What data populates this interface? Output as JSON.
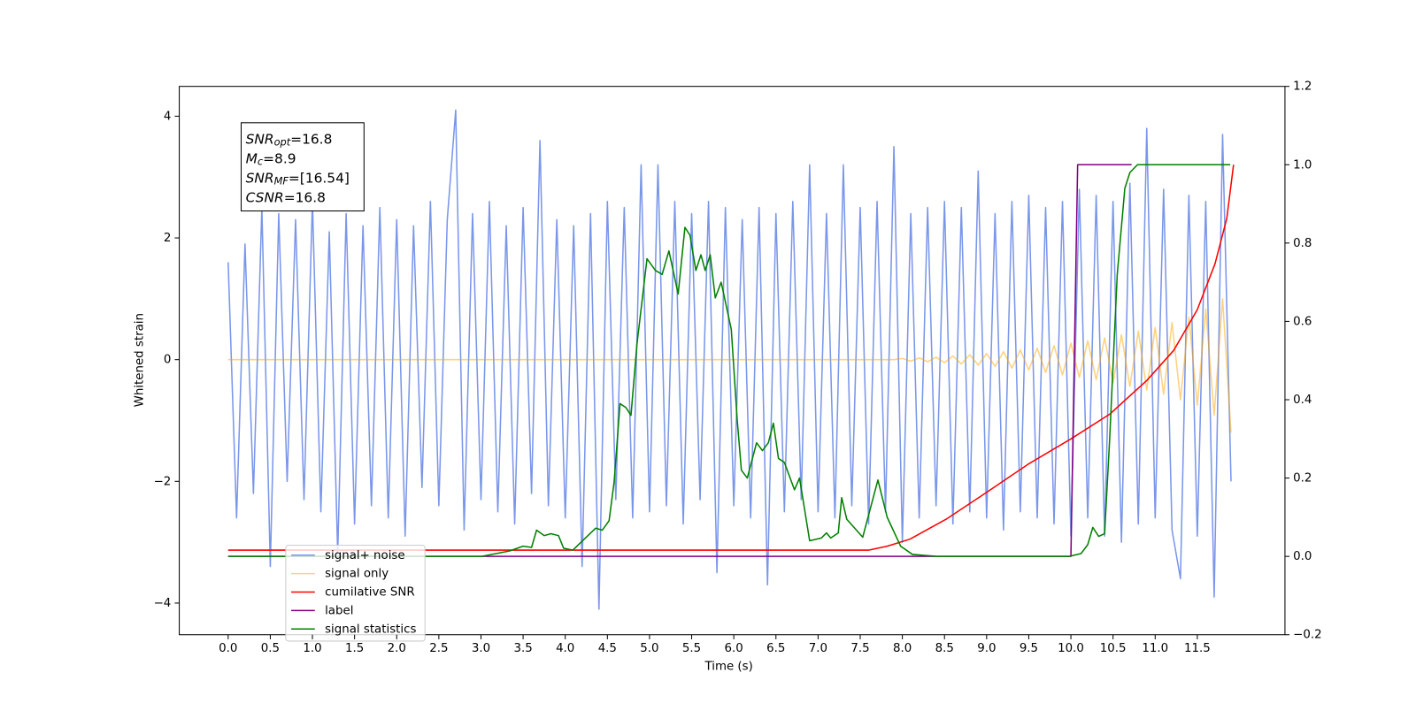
{
  "chart_data": {
    "type": "line",
    "xlabel": "Time (s)",
    "ylabel": "Whitened strain",
    "xlim": [
      -0.58,
      12.54
    ],
    "ylim": [
      -4.52,
      4.49
    ],
    "y2lim": [
      -0.2,
      1.2
    ],
    "xticks": [
      {
        "value": 0,
        "label": "0.0"
      },
      0.5,
      {
        "value": 1,
        "label": "1.0"
      },
      1.5,
      {
        "value": 2,
        "label": "2.0"
      },
      2.5,
      {
        "value": 3,
        "label": "3.0"
      },
      3.5,
      {
        "value": 4,
        "label": "4.0"
      },
      4.5,
      {
        "value": 5,
        "label": "5.0"
      },
      5.5,
      {
        "value": 6,
        "label": "6.0"
      },
      6.5,
      {
        "value": 7,
        "label": "7.0"
      },
      7.5,
      {
        "value": 8,
        "label": "8.0"
      },
      8.5,
      {
        "value": 9,
        "label": "9.0"
      },
      9.5,
      {
        "value": 10,
        "label": "10.0"
      },
      10.5,
      {
        "value": 11,
        "label": "11.0"
      },
      11.5
    ],
    "yticks": [
      {
        "value": -4,
        "label": "−4"
      },
      {
        "value": -2,
        "label": "−2"
      },
      0,
      2,
      4
    ],
    "y2ticks": [
      {
        "value": -0.2,
        "label": "−0.2"
      },
      {
        "value": 0,
        "label": "0.0"
      },
      0.2,
      0.4,
      0.6,
      0.8,
      {
        "value": 1,
        "label": "1.0"
      },
      1.2
    ],
    "legend_loc": "lower left",
    "annotation_lines": [
      {
        "symbol": "SNR",
        "subscript": "opt",
        "text": "=16.8"
      },
      {
        "symbol": "M",
        "subscript": "c",
        "text": "=8.9"
      },
      {
        "symbol": "SNR",
        "subscript": "MF",
        "text": "=[16.54]"
      },
      {
        "symbol": "CSNR",
        "text": "=16.8"
      }
    ],
    "series": [
      {
        "name": "signal+ noise",
        "color": "#4169e1",
        "alpha": 0.7,
        "x": [
          0,
          0.1,
          0.2,
          0.3,
          0.4,
          0.5,
          0.6,
          0.7,
          0.8,
          0.9,
          1,
          1.1,
          1.2,
          1.3,
          1.4,
          1.5,
          1.6,
          1.7,
          1.8,
          1.9,
          2,
          2.1,
          2.2,
          2.3,
          2.4,
          2.5,
          2.6,
          2.7,
          2.8,
          2.9,
          3,
          3.1,
          3.2,
          3.3,
          3.4,
          3.5,
          3.6,
          3.7,
          3.8,
          3.9,
          4,
          4.1,
          4.2,
          4.3,
          4.4,
          4.5,
          4.6,
          4.7,
          4.8,
          4.9,
          5,
          5.1,
          5.2,
          5.3,
          5.4,
          5.5,
          5.6,
          5.7,
          5.8,
          5.9,
          6,
          6.1,
          6.2,
          6.3,
          6.4,
          6.5,
          6.6,
          6.7,
          6.8,
          6.9,
          7,
          7.1,
          7.2,
          7.3,
          7.4,
          7.5,
          7.6,
          7.7,
          7.8,
          7.9,
          8,
          8.1,
          8.2,
          8.3,
          8.4,
          8.5,
          8.6,
          8.7,
          8.8,
          8.9,
          9,
          9.1,
          9.2,
          9.3,
          9.4,
          9.5,
          9.6,
          9.7,
          9.8,
          9.9,
          10,
          10.1,
          10.2,
          10.3,
          10.4,
          10.5,
          10.6,
          10.7,
          10.8,
          10.9,
          11,
          11.1,
          11.2,
          11.3,
          11.4,
          11.5,
          11.6,
          11.7,
          11.8,
          11.9
        ],
        "values": [
          1.6,
          -2.6,
          1.9,
          -2.2,
          2.5,
          -3.4,
          2.4,
          -2.0,
          2.3,
          -2.3,
          2.6,
          -2.5,
          2.1,
          -3.2,
          2.4,
          -2.7,
          2.2,
          -2.4,
          2.5,
          -2.6,
          2.3,
          -2.9,
          2.2,
          -2.1,
          2.6,
          -2.4,
          2.3,
          4.1,
          -2.8,
          2.4,
          -2.3,
          2.6,
          -2.5,
          2.2,
          -2.7,
          2.5,
          -2.2,
          3.6,
          -2.4,
          2.3,
          -2.6,
          2.2,
          -3.4,
          2.4,
          -4.1,
          2.6,
          -2.3,
          2.5,
          -2.6,
          3.2,
          -2.5,
          3.2,
          -2.4,
          2.6,
          -2.7,
          2.4,
          -2.3,
          2.6,
          -3.5,
          2.5,
          -2.4,
          2.3,
          -2.6,
          2.5,
          -3.7,
          2.4,
          -2.5,
          2.6,
          -2.3,
          3.2,
          -2.5,
          2.4,
          -2.6,
          3.2,
          -2.4,
          2.5,
          -2.7,
          2.6,
          -2.5,
          3.5,
          -3.0,
          2.4,
          -2.6,
          2.5,
          -2.4,
          2.6,
          -2.7,
          2.5,
          -2.5,
          3.1,
          -2.6,
          2.4,
          -2.8,
          2.6,
          -2.5,
          2.7,
          -2.6,
          2.5,
          -2.7,
          2.6,
          -2.9,
          2.8,
          -2.6,
          2.7,
          -2.9,
          2.6,
          -3.0,
          2.9,
          -2.7,
          3.8,
          -2.6,
          2.8,
          -2.8,
          -3.6,
          2.7,
          -2.9,
          2.6,
          -3.9,
          3.7,
          -2.0
        ]
      },
      {
        "name": "signal only",
        "color": "#ffa500",
        "alpha": 0.5,
        "x": [
          0,
          7.9,
          8,
          8.1,
          8.2,
          8.3,
          8.4,
          8.5,
          8.6,
          8.7,
          8.8,
          8.9,
          9,
          9.1,
          9.2,
          9.3,
          9.4,
          9.5,
          9.6,
          9.7,
          9.8,
          9.9,
          10,
          10.1,
          10.2,
          10.3,
          10.4,
          10.5,
          10.6,
          10.7,
          10.8,
          10.9,
          11,
          11.1,
          11.2,
          11.3,
          11.4,
          11.5,
          11.6,
          11.7,
          11.8,
          11.9
        ],
        "values": [
          0,
          0,
          0.02,
          -0.025,
          0.03,
          -0.035,
          0.04,
          -0.05,
          0.06,
          -0.07,
          0.08,
          -0.09,
          0.1,
          -0.11,
          0.13,
          -0.14,
          0.16,
          -0.17,
          0.19,
          -0.21,
          0.23,
          -0.25,
          0.27,
          -0.29,
          0.31,
          -0.33,
          0.36,
          -0.38,
          0.41,
          -0.44,
          0.47,
          -0.5,
          0.53,
          -0.57,
          0.61,
          -0.66,
          0.7,
          -0.75,
          0.83,
          -0.91,
          1.0,
          -1.2
        ]
      },
      {
        "name": "cumilative SNR",
        "color": "#ff0000",
        "axis": "y2",
        "x": [
          0,
          7.6,
          7.82,
          8.09,
          8.52,
          9.01,
          9.49,
          10,
          10.46,
          10.9,
          11.22,
          11.5,
          11.71,
          11.85,
          11.93
        ],
        "values": [
          0.016,
          0.016,
          0.026,
          0.044,
          0.095,
          0.165,
          0.235,
          0.3,
          0.363,
          0.449,
          0.526,
          0.63,
          0.747,
          0.863,
          1.0
        ]
      },
      {
        "name": "label",
        "color": "#800080",
        "axis": "y2",
        "x": [
          0,
          10,
          10.08,
          10.72
        ],
        "values": [
          0,
          0,
          1,
          1
        ]
      },
      {
        "name": "signal statistics",
        "color": "#008000",
        "axis": "y2",
        "x": [
          0,
          3.01,
          3.34,
          3.5,
          3.6,
          3.66,
          3.75,
          3.83,
          3.92,
          3.98,
          4.09,
          4.25,
          4.36,
          4.44,
          4.52,
          4.58,
          4.65,
          4.72,
          4.78,
          4.85,
          4.97,
          5.07,
          5.15,
          5.23,
          5.34,
          5.42,
          5.48,
          5.55,
          5.61,
          5.66,
          5.72,
          5.78,
          5.85,
          5.97,
          6.04,
          6.09,
          6.16,
          6.27,
          6.34,
          6.41,
          6.47,
          6.53,
          6.6,
          6.72,
          6.78,
          6.9,
          7.04,
          7.1,
          7.15,
          7.24,
          7.28,
          7.34,
          7.53,
          7.71,
          7.82,
          7.98,
          8.12,
          8.41,
          9.98,
          10.12,
          10.2,
          10.26,
          10.33,
          10.4,
          10.46,
          10.55,
          10.64,
          10.7,
          10.79,
          11.89
        ],
        "values": [
          0,
          0,
          0.014,
          0.026,
          0.023,
          0.067,
          0.053,
          0.058,
          0.053,
          0.021,
          0.016,
          0.049,
          0.072,
          0.067,
          0.091,
          0.19,
          0.39,
          0.38,
          0.36,
          0.54,
          0.76,
          0.73,
          0.72,
          0.78,
          0.67,
          0.84,
          0.82,
          0.73,
          0.77,
          0.73,
          0.77,
          0.66,
          0.7,
          0.58,
          0.35,
          0.22,
          0.2,
          0.29,
          0.27,
          0.29,
          0.34,
          0.25,
          0.24,
          0.17,
          0.2,
          0.04,
          0.047,
          0.06,
          0.047,
          0.06,
          0.15,
          0.095,
          0.049,
          0.195,
          0.1,
          0.026,
          0.005,
          0,
          0,
          0.007,
          0.03,
          0.074,
          0.051,
          0.058,
          0.3,
          0.72,
          0.94,
          0.98,
          1.0,
          1.0
        ]
      }
    ]
  }
}
